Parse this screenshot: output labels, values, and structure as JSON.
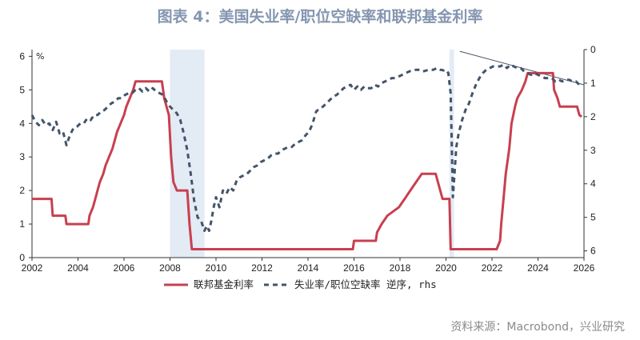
{
  "chart_data": {
    "type": "line",
    "title": "图表 4：美国失业率/职位空缺率和联邦基金利率",
    "source": "资料来源：Macrobond，兴业研究",
    "y_left": {
      "unit": "%",
      "range": [
        0,
        6.2
      ],
      "ticks": [
        0,
        1,
        2,
        3,
        4,
        5,
        6
      ]
    },
    "y_right": {
      "range": [
        0,
        6.2
      ],
      "reversed": true,
      "ticks": [
        0,
        1,
        2,
        3,
        4,
        5,
        6
      ]
    },
    "x_axis": {
      "range": [
        2002,
        2026
      ],
      "ticks": [
        2002,
        2004,
        2006,
        2008,
        2010,
        2012,
        2014,
        2016,
        2018,
        2020,
        2022,
        2024,
        2026
      ]
    },
    "recessions": [
      [
        2008.0,
        2009.5
      ],
      [
        2020.15,
        2020.35
      ]
    ],
    "trendline": {
      "points": [
        [
          2020.6,
          0.05
        ],
        [
          2026.0,
          1.05
        ]
      ],
      "axis": "right"
    },
    "series": [
      {
        "name": "联邦基金利率",
        "axis": "left",
        "color": "#c8404f",
        "style": "solid",
        "points": [
          [
            2002.0,
            1.75
          ],
          [
            2002.85,
            1.75
          ],
          [
            2002.9,
            1.25
          ],
          [
            2003.45,
            1.25
          ],
          [
            2003.5,
            1.0
          ],
          [
            2004.45,
            1.0
          ],
          [
            2004.5,
            1.25
          ],
          [
            2004.65,
            1.5
          ],
          [
            2004.75,
            1.75
          ],
          [
            2004.85,
            2.0
          ],
          [
            2004.95,
            2.25
          ],
          [
            2005.1,
            2.5
          ],
          [
            2005.2,
            2.75
          ],
          [
            2005.35,
            3.0
          ],
          [
            2005.5,
            3.25
          ],
          [
            2005.6,
            3.5
          ],
          [
            2005.7,
            3.75
          ],
          [
            2005.85,
            4.0
          ],
          [
            2006.0,
            4.25
          ],
          [
            2006.1,
            4.5
          ],
          [
            2006.25,
            4.75
          ],
          [
            2006.4,
            5.0
          ],
          [
            2006.5,
            5.25
          ],
          [
            2007.65,
            5.25
          ],
          [
            2007.75,
            4.75
          ],
          [
            2007.85,
            4.5
          ],
          [
            2007.95,
            4.25
          ],
          [
            2008.05,
            3.0
          ],
          [
            2008.15,
            2.25
          ],
          [
            2008.3,
            2.0
          ],
          [
            2008.75,
            2.0
          ],
          [
            2008.8,
            1.5
          ],
          [
            2008.85,
            1.0
          ],
          [
            2008.95,
            0.25
          ],
          [
            2015.95,
            0.25
          ],
          [
            2016.0,
            0.5
          ],
          [
            2016.95,
            0.5
          ],
          [
            2017.0,
            0.75
          ],
          [
            2017.2,
            1.0
          ],
          [
            2017.45,
            1.25
          ],
          [
            2017.95,
            1.5
          ],
          [
            2018.2,
            1.75
          ],
          [
            2018.45,
            2.0
          ],
          [
            2018.7,
            2.25
          ],
          [
            2018.95,
            2.5
          ],
          [
            2019.55,
            2.5
          ],
          [
            2019.65,
            2.25
          ],
          [
            2019.75,
            2.0
          ],
          [
            2019.85,
            1.75
          ],
          [
            2020.15,
            1.75
          ],
          [
            2020.2,
            0.25
          ],
          [
            2022.2,
            0.25
          ],
          [
            2022.35,
            0.5
          ],
          [
            2022.4,
            1.0
          ],
          [
            2022.5,
            1.75
          ],
          [
            2022.6,
            2.5
          ],
          [
            2022.75,
            3.25
          ],
          [
            2022.85,
            4.0
          ],
          [
            2023.0,
            4.5
          ],
          [
            2023.1,
            4.75
          ],
          [
            2023.3,
            5.0
          ],
          [
            2023.45,
            5.25
          ],
          [
            2023.55,
            5.5
          ],
          [
            2024.65,
            5.5
          ],
          [
            2024.7,
            5.0
          ],
          [
            2024.85,
            4.75
          ],
          [
            2024.95,
            4.5
          ],
          [
            2025.7,
            4.5
          ],
          [
            2025.8,
            4.25
          ],
          [
            2025.9,
            4.2
          ]
        ]
      },
      {
        "name": "失业率/职位空缺率 逆序, rhs",
        "axis": "right",
        "color": "#44546a",
        "style": "dashed",
        "points": [
          [
            2002.0,
            1.95
          ],
          [
            2002.15,
            2.15
          ],
          [
            2002.3,
            2.25
          ],
          [
            2002.45,
            2.1
          ],
          [
            2002.6,
            2.25
          ],
          [
            2002.75,
            2.2
          ],
          [
            2002.9,
            2.4
          ],
          [
            2003.05,
            2.15
          ],
          [
            2003.2,
            2.5
          ],
          [
            2003.35,
            2.45
          ],
          [
            2003.5,
            2.85
          ],
          [
            2003.65,
            2.55
          ],
          [
            2003.8,
            2.35
          ],
          [
            2003.95,
            2.3
          ],
          [
            2004.1,
            2.2
          ],
          [
            2004.25,
            2.2
          ],
          [
            2004.4,
            2.05
          ],
          [
            2004.55,
            2.1
          ],
          [
            2004.7,
            1.95
          ],
          [
            2004.85,
            1.95
          ],
          [
            2005.0,
            1.85
          ],
          [
            2005.15,
            1.8
          ],
          [
            2005.3,
            1.7
          ],
          [
            2005.45,
            1.6
          ],
          [
            2005.6,
            1.55
          ],
          [
            2005.75,
            1.45
          ],
          [
            2005.9,
            1.45
          ],
          [
            2006.05,
            1.35
          ],
          [
            2006.2,
            1.3
          ],
          [
            2006.35,
            1.3
          ],
          [
            2006.5,
            1.2
          ],
          [
            2006.65,
            1.15
          ],
          [
            2006.8,
            1.25
          ],
          [
            2006.95,
            1.15
          ],
          [
            2007.1,
            1.25
          ],
          [
            2007.25,
            1.15
          ],
          [
            2007.4,
            1.25
          ],
          [
            2007.55,
            1.3
          ],
          [
            2007.7,
            1.35
          ],
          [
            2007.85,
            1.55
          ],
          [
            2008.0,
            1.7
          ],
          [
            2008.15,
            1.8
          ],
          [
            2008.3,
            1.9
          ],
          [
            2008.45,
            2.1
          ],
          [
            2008.6,
            2.5
          ],
          [
            2008.75,
            3.0
          ],
          [
            2008.9,
            3.7
          ],
          [
            2009.05,
            4.5
          ],
          [
            2009.2,
            5.0
          ],
          [
            2009.35,
            5.1
          ],
          [
            2009.5,
            5.4
          ],
          [
            2009.6,
            5.25
          ],
          [
            2009.7,
            5.4
          ],
          [
            2009.8,
            5.1
          ],
          [
            2009.9,
            4.7
          ],
          [
            2010.0,
            4.4
          ],
          [
            2010.15,
            4.7
          ],
          [
            2010.3,
            4.2
          ],
          [
            2010.45,
            4.3
          ],
          [
            2010.6,
            4.1
          ],
          [
            2010.75,
            4.2
          ],
          [
            2010.9,
            3.9
          ],
          [
            2011.05,
            3.8
          ],
          [
            2011.2,
            3.75
          ],
          [
            2011.35,
            3.7
          ],
          [
            2011.5,
            3.6
          ],
          [
            2011.65,
            3.5
          ],
          [
            2011.8,
            3.45
          ],
          [
            2011.95,
            3.35
          ],
          [
            2012.1,
            3.3
          ],
          [
            2012.25,
            3.25
          ],
          [
            2012.4,
            3.15
          ],
          [
            2012.55,
            3.1
          ],
          [
            2012.7,
            3.1
          ],
          [
            2012.85,
            3.0
          ],
          [
            2013.0,
            2.95
          ],
          [
            2013.15,
            2.9
          ],
          [
            2013.3,
            2.9
          ],
          [
            2013.45,
            2.8
          ],
          [
            2013.6,
            2.75
          ],
          [
            2013.75,
            2.7
          ],
          [
            2013.9,
            2.55
          ],
          [
            2014.05,
            2.45
          ],
          [
            2014.2,
            2.2
          ],
          [
            2014.35,
            1.85
          ],
          [
            2014.5,
            1.75
          ],
          [
            2014.65,
            1.7
          ],
          [
            2014.8,
            1.6
          ],
          [
            2014.95,
            1.5
          ],
          [
            2015.1,
            1.4
          ],
          [
            2015.25,
            1.35
          ],
          [
            2015.4,
            1.25
          ],
          [
            2015.55,
            1.15
          ],
          [
            2015.7,
            1.1
          ],
          [
            2015.85,
            1.05
          ],
          [
            2016.0,
            1.2
          ],
          [
            2016.15,
            1.1
          ],
          [
            2016.3,
            1.2
          ],
          [
            2016.45,
            1.1
          ],
          [
            2016.6,
            1.15
          ],
          [
            2016.75,
            1.15
          ],
          [
            2016.9,
            1.05
          ],
          [
            2017.05,
            1.1
          ],
          [
            2017.2,
            1.0
          ],
          [
            2017.35,
            0.95
          ],
          [
            2017.5,
            0.9
          ],
          [
            2017.65,
            0.85
          ],
          [
            2017.8,
            0.85
          ],
          [
            2017.95,
            0.8
          ],
          [
            2018.1,
            0.75
          ],
          [
            2018.25,
            0.7
          ],
          [
            2018.4,
            0.65
          ],
          [
            2018.55,
            0.62
          ],
          [
            2018.7,
            0.6
          ],
          [
            2018.85,
            0.6
          ],
          [
            2019.0,
            0.65
          ],
          [
            2019.15,
            0.62
          ],
          [
            2019.3,
            0.6
          ],
          [
            2019.45,
            0.6
          ],
          [
            2019.6,
            0.55
          ],
          [
            2019.75,
            0.6
          ],
          [
            2019.9,
            0.62
          ],
          [
            2020.0,
            0.6
          ],
          [
            2020.1,
            0.7
          ],
          [
            2020.2,
            1.3
          ],
          [
            2020.25,
            2.8
          ],
          [
            2020.3,
            4.4
          ],
          [
            2020.38,
            3.6
          ],
          [
            2020.45,
            2.9
          ],
          [
            2020.55,
            2.5
          ],
          [
            2020.7,
            2.1
          ],
          [
            2020.85,
            1.8
          ],
          [
            2021.0,
            1.6
          ],
          [
            2021.15,
            1.3
          ],
          [
            2021.3,
            1.05
          ],
          [
            2021.45,
            0.85
          ],
          [
            2021.6,
            0.7
          ],
          [
            2021.75,
            0.6
          ],
          [
            2021.9,
            0.55
          ],
          [
            2022.05,
            0.5
          ],
          [
            2022.2,
            0.5
          ],
          [
            2022.35,
            0.5
          ],
          [
            2022.5,
            0.45
          ],
          [
            2022.65,
            0.55
          ],
          [
            2022.8,
            0.45
          ],
          [
            2022.95,
            0.5
          ],
          [
            2023.1,
            0.55
          ],
          [
            2023.25,
            0.55
          ],
          [
            2023.4,
            0.65
          ],
          [
            2023.55,
            0.7
          ],
          [
            2023.7,
            0.75
          ],
          [
            2023.85,
            0.7
          ],
          [
            2024.0,
            0.75
          ],
          [
            2024.15,
            0.8
          ],
          [
            2024.3,
            0.85
          ],
          [
            2024.45,
            0.85
          ],
          [
            2024.6,
            0.85
          ],
          [
            2024.75,
            0.95
          ],
          [
            2024.9,
            0.9
          ],
          [
            2025.05,
            0.95
          ],
          [
            2025.2,
            0.9
          ],
          [
            2025.35,
            0.9
          ],
          [
            2025.5,
            0.95
          ],
          [
            2025.65,
            0.95
          ],
          [
            2025.8,
            1.05
          ]
        ]
      }
    ]
  }
}
